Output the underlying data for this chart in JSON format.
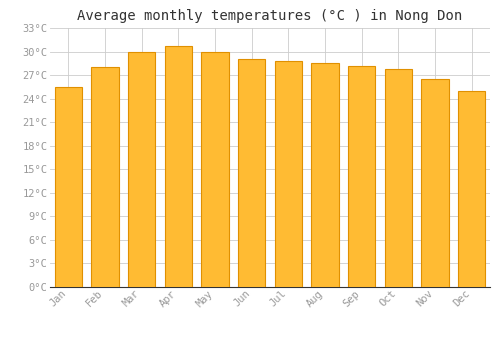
{
  "title": "Average monthly temperatures (°C ) in Nong Don",
  "months": [
    "Jan",
    "Feb",
    "Mar",
    "Apr",
    "May",
    "Jun",
    "Jul",
    "Aug",
    "Sep",
    "Oct",
    "Nov",
    "Dec"
  ],
  "temperatures": [
    25.5,
    28.0,
    30.0,
    30.7,
    30.0,
    29.0,
    28.8,
    28.5,
    28.2,
    27.8,
    26.5,
    25.0
  ],
  "bar_color_face": "#FFBB33",
  "bar_color_edge": "#E09000",
  "ylim": [
    0,
    33
  ],
  "yticks": [
    0,
    3,
    6,
    9,
    12,
    15,
    18,
    21,
    24,
    27,
    30,
    33
  ],
  "background_color": "#ffffff",
  "grid_color": "#cccccc",
  "title_fontsize": 10,
  "tick_fontsize": 7.5,
  "tick_color": "#999999",
  "font_family": "monospace",
  "figsize": [
    5.0,
    3.5
  ],
  "dpi": 100
}
